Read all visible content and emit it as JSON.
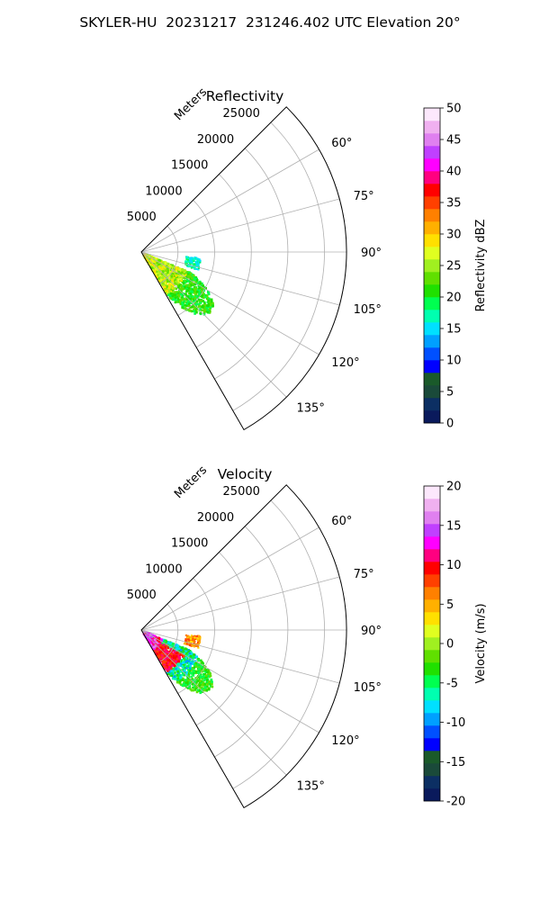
{
  "figure": {
    "suptitle": "SKYLER-HU  20231217  231246.402 UTC Elevation 20°"
  },
  "chart_data": [
    {
      "type": "polar-sector",
      "title": "Reflectivity",
      "range_label": "Meters",
      "range_ticks": [
        5000,
        10000,
        15000,
        20000,
        25000
      ],
      "range_max": 28000,
      "azimuth_range_deg": [
        45,
        150
      ],
      "azimuth_ticks": [
        "60°",
        "75°",
        "90°",
        "105°",
        "120°",
        "135°"
      ],
      "grid": true,
      "echo_extent_m": 12000,
      "colorbar": {
        "label": "Reflectivity dBZ",
        "min": 0,
        "max": 50,
        "ticks": [
          0,
          5,
          10,
          15,
          20,
          25,
          30,
          35,
          40,
          45,
          50
        ],
        "colors": [
          "#0a1a5c",
          "#0c2f63",
          "#1a4a3a",
          "#1a5a2a",
          "#0000ff",
          "#0050ff",
          "#00a0ff",
          "#00e0ff",
          "#00ffb0",
          "#00ff50",
          "#20e000",
          "#60e000",
          "#a0f020",
          "#e0ff20",
          "#ffe000",
          "#ffb000",
          "#ff8000",
          "#ff4000",
          "#ff0000",
          "#ff0080",
          "#ff00ff",
          "#c040ff",
          "#e080f0",
          "#f0b0f0",
          "#fce8fc"
        ]
      }
    },
    {
      "type": "polar-sector",
      "title": "Velocity",
      "range_label": "Meters",
      "range_ticks": [
        5000,
        10000,
        15000,
        20000,
        25000
      ],
      "range_max": 28000,
      "azimuth_range_deg": [
        45,
        150
      ],
      "azimuth_ticks": [
        "60°",
        "75°",
        "90°",
        "105°",
        "120°",
        "135°"
      ],
      "grid": true,
      "echo_extent_m": 12000,
      "colorbar": {
        "label": "Velocity (m/s)",
        "min": -20,
        "max": 20,
        "ticks": [
          -20,
          -15,
          -10,
          -5,
          0,
          5,
          10,
          15,
          20
        ],
        "colors": [
          "#0a1a5c",
          "#0c2f63",
          "#1a4a3a",
          "#1a5a2a",
          "#0000ff",
          "#0050ff",
          "#00a0ff",
          "#00e0ff",
          "#00ffb0",
          "#00ff50",
          "#20e000",
          "#60e000",
          "#a0f020",
          "#e0ff20",
          "#ffe000",
          "#ffb000",
          "#ff8000",
          "#ff4000",
          "#ff0000",
          "#ff0080",
          "#ff00ff",
          "#c040ff",
          "#e080f0",
          "#f0b0f0",
          "#fce8fc"
        ]
      }
    }
  ]
}
